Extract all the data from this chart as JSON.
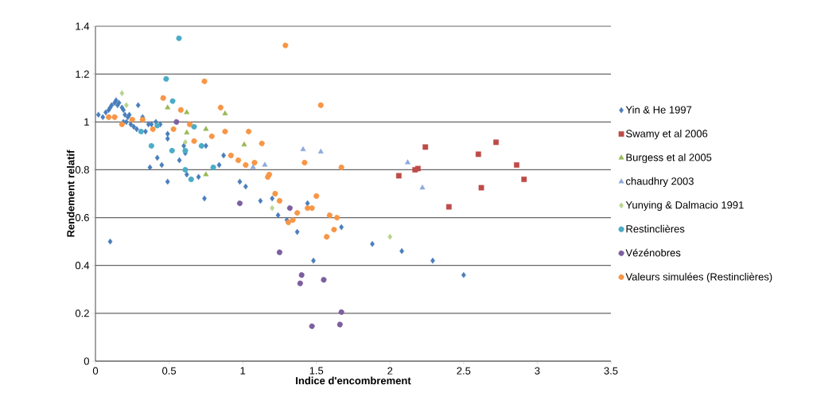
{
  "chart_data": {
    "type": "scatter",
    "xlabel": "Indice d'encombrement",
    "ylabel": "Rendement relatif",
    "xlim": [
      0,
      3.5
    ],
    "xticks": [
      0,
      0.5,
      1,
      1.5,
      2,
      2.5,
      3,
      3.5
    ],
    "ylim": [
      0,
      1.4
    ],
    "yticks": [
      0,
      0.2,
      0.4,
      0.6,
      0.8,
      1,
      1.2,
      1.4
    ],
    "grid": "y",
    "legend": "right",
    "series": [
      {
        "name": "Yin & He 1997",
        "color": "#4a7ebb",
        "marker": "diamond",
        "x": [
          0.02,
          0.05,
          0.07,
          0.09,
          0.1,
          0.11,
          0.13,
          0.14,
          0.15,
          0.16,
          0.18,
          0.19,
          0.2,
          0.21,
          0.22,
          0.24,
          0.26,
          0.28,
          0.29,
          0.3,
          0.32,
          0.34,
          0.36,
          0.38,
          0.41,
          0.42,
          0.44,
          0.37,
          0.42,
          0.45,
          0.49,
          0.49,
          0.49,
          0.57,
          0.6,
          0.61,
          0.62,
          0.64,
          0.7,
          0.74,
          0.75,
          0.84,
          0.87,
          0.98,
          1.02,
          1.12,
          1.2,
          1.24,
          1.3,
          1.37,
          1.44,
          1.48,
          1.67,
          1.88,
          2.08,
          2.29,
          2.5,
          0.1,
          0.19,
          0.23
        ],
        "values": [
          1.03,
          1.02,
          1.04,
          1.05,
          1.06,
          1.07,
          1.08,
          1.09,
          1.07,
          1.08,
          1.06,
          1.05,
          1.03,
          1.0,
          1.02,
          0.99,
          0.98,
          0.97,
          1.07,
          null,
          1.02,
          0.96,
          0.99,
          0.99,
          1.0,
          null,
          0.99,
          0.81,
          0.85,
          0.82,
          0.93,
          0.95,
          0.75,
          0.84,
          0.9,
          0.87,
          0.78,
          null,
          0.77,
          0.68,
          0.9,
          0.82,
          0.86,
          0.75,
          0.73,
          0.67,
          0.68,
          0.61,
          0.59,
          0.54,
          0.66,
          0.42,
          0.56,
          0.49,
          0.46,
          0.42,
          0.36,
          0.5,
          1.0,
          1.03
        ]
      },
      {
        "name": "Swamy et al 2006",
        "color": "#be4b48",
        "marker": "square",
        "x": [
          2.06,
          2.17,
          2.19,
          2.24,
          2.4,
          2.6,
          2.62,
          2.72,
          2.86,
          2.91
        ],
        "values": [
          0.775,
          0.8,
          0.805,
          0.895,
          0.645,
          0.865,
          0.725,
          0.915,
          0.82,
          0.76
        ]
      },
      {
        "name": "Burgess et al 2005",
        "color": "#98b954",
        "marker": "triangle",
        "x": [
          0.49,
          0.62,
          0.88,
          0.62,
          0.75,
          1.01,
          0.75
        ],
        "values": [
          1.06,
          1.04,
          1.035,
          0.955,
          0.97,
          0.905,
          0.78
        ]
      },
      {
        "name": "chaudhry 2003",
        "color": "#8eaadb",
        "marker": "triangle",
        "x": [
          1.07,
          1.15,
          1.41,
          1.53,
          2.12,
          2.22
        ],
        "values": [
          0.81,
          0.82,
          0.885,
          0.875,
          0.83,
          0.725
        ]
      },
      {
        "name": "Yunying & Dalmacio 1991",
        "color": "#b8d48f",
        "marker": "diamond",
        "x": [
          0.18,
          0.21,
          0.61,
          1.2,
          2.0
        ],
        "values": [
          1.12,
          1.07,
          0.915,
          0.64,
          0.52
        ]
      },
      {
        "name": "Restinclières",
        "color": "#4bacc6",
        "marker": "circle",
        "x": [
          0.567,
          0.48,
          0.524,
          0.31,
          0.42,
          0.67,
          0.38,
          0.52,
          0.61,
          0.72,
          0.61,
          0.65,
          0.8
        ],
        "values": [
          1.35,
          1.18,
          1.087,
          0.96,
          0.985,
          0.98,
          0.9,
          0.88,
          0.88,
          0.9,
          0.8,
          0.76,
          0.81
        ]
      },
      {
        "name": "Vézénobres",
        "color": "#7d5fa0",
        "marker": "circle",
        "x": [
          0.55,
          0.98,
          1.25,
          1.32,
          1.4,
          1.39,
          1.55,
          1.67,
          1.47,
          1.66
        ],
        "values": [
          1.0,
          0.66,
          0.455,
          0.64,
          0.36,
          0.325,
          0.34,
          0.205,
          0.146,
          0.153
        ]
      },
      {
        "name": "Valeurs simulées (Restinclières)",
        "color": "#f79646",
        "marker": "circle",
        "x": [
          0.09,
          0.13,
          0.18,
          0.25,
          0.32,
          0.39,
          0.46,
          0.58,
          0.53,
          0.64,
          0.67,
          0.74,
          0.79,
          0.85,
          0.88,
          0.92,
          0.97,
          1.02,
          1.04,
          1.08,
          1.13,
          1.29,
          1.53,
          1.42,
          1.67,
          1.17,
          1.18,
          1.22,
          1.25,
          1.5,
          1.37,
          1.44,
          1.47,
          1.59,
          1.64,
          1.31,
          1.34,
          1.62,
          1.57
        ],
        "values": [
          1.02,
          1.02,
          0.99,
          1.01,
          1.01,
          0.97,
          1.1,
          1.05,
          0.97,
          0.99,
          0.92,
          1.17,
          0.94,
          1.06,
          0.96,
          0.86,
          0.84,
          0.82,
          0.96,
          0.83,
          0.91,
          1.32,
          1.07,
          0.83,
          0.81,
          0.77,
          0.78,
          0.7,
          0.67,
          0.69,
          0.62,
          0.64,
          0.64,
          0.61,
          0.6,
          0.58,
          0.59,
          0.55,
          0.52
        ]
      }
    ]
  }
}
